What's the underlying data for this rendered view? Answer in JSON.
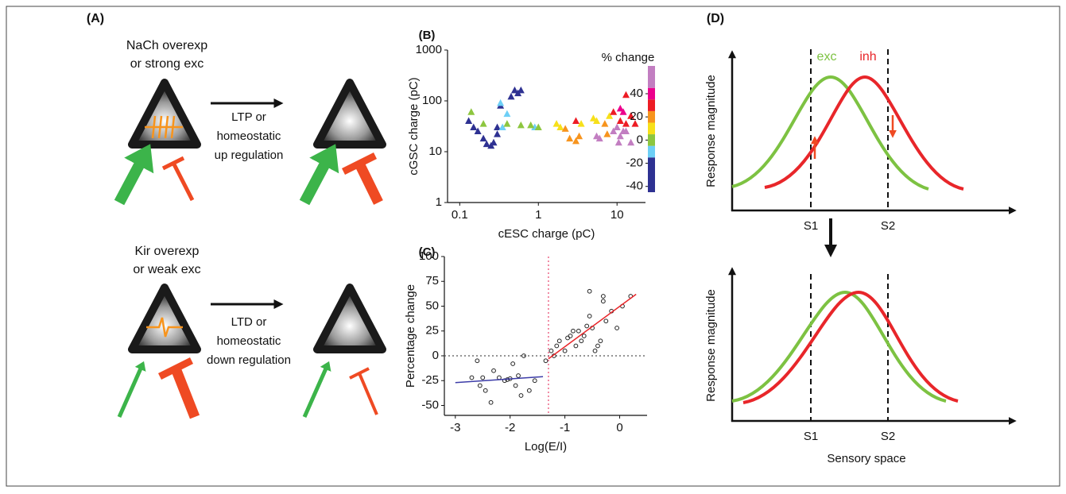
{
  "panel_a": {
    "label": "(A)",
    "top": {
      "condition": [
        "NaCh overexp",
        "or strong exc"
      ],
      "plasticity": [
        "LTP or",
        "homeostatic",
        "up regulation"
      ]
    },
    "bottom": {
      "condition": [
        "Kir overexp",
        "or weak exc"
      ],
      "plasticity": [
        "LTD or",
        "homeostatic",
        "down regulation"
      ]
    }
  },
  "panel_d": {
    "label": "(D)",
    "exc": "exc",
    "inh": "inh",
    "top": {
      "y_label": "Response magnitude",
      "s1": "S1",
      "s2": "S2"
    },
    "bottom": {
      "y_label": "Response magnitude",
      "s1": "S1",
      "s2": "S2",
      "x_label": "Sensory space"
    }
  },
  "chart_data": [
    {
      "type": "scatter",
      "label": "(B)",
      "marker": "triangle",
      "x_label": "cESC charge (pC)",
      "y_label": "cGSC charge (pC)",
      "xlog": true,
      "ylog": true,
      "xlim": [
        0.07,
        23
      ],
      "ylim": [
        1,
        1000
      ],
      "xticks": [
        0.1,
        1,
        10
      ],
      "yticks": [
        1,
        10,
        100,
        1000
      ],
      "x": [
        0.13,
        0.15,
        0.17,
        0.2,
        0.22,
        0.25,
        0.27,
        0.3,
        0.3,
        0.33,
        0.45,
        0.5,
        0.6,
        0.55,
        0.33,
        0.35,
        0.4,
        0.9,
        0.14,
        0.2,
        0.4,
        0.6,
        0.8,
        1.0,
        1.7,
        1.9,
        3.5,
        5,
        5.5,
        8,
        2.2,
        2.5,
        3,
        3.3,
        7,
        7.5,
        3,
        9,
        11,
        13,
        13,
        15,
        17,
        11,
        12,
        5.5,
        6,
        9,
        10,
        10.5,
        11,
        12,
        13,
        15
      ],
      "values": [
        40,
        30,
        25,
        18,
        14,
        13,
        15,
        22,
        30,
        80,
        120,
        160,
        160,
        140,
        90,
        30,
        55,
        30,
        60,
        35,
        35,
        33,
        33,
        30,
        35,
        30,
        35,
        45,
        40,
        50,
        28,
        18,
        16,
        20,
        35,
        22,
        40,
        60,
        40,
        35,
        130,
        50,
        35,
        70,
        60,
        20,
        18,
        25,
        30,
        15,
        20,
        25,
        25,
        15
      ],
      "z": [
        -35,
        -35,
        -35,
        -35,
        -35,
        -35,
        -35,
        -35,
        -35,
        -35,
        -35,
        -35,
        -35,
        -35,
        -10,
        -10,
        -10,
        -10,
        0,
        0,
        0,
        0,
        0,
        0,
        10,
        10,
        10,
        10,
        10,
        10,
        20,
        20,
        20,
        20,
        20,
        20,
        30,
        30,
        30,
        30,
        30,
        30,
        30,
        40,
        40,
        55,
        55,
        55,
        55,
        55,
        55,
        55,
        55,
        55
      ],
      "colorbar": {
        "label": "% change",
        "lim": [
          -45,
          64
        ],
        "ticks": [
          -40,
          -20,
          0,
          20,
          40
        ],
        "bounds": [
          -45,
          -15,
          -5,
          5,
          15,
          25,
          35,
          45,
          64
        ],
        "colors": [
          "#2e3192",
          "#6dcff6",
          "#8dc63f",
          "#f7e01a",
          "#f7941d",
          "#ed1c24",
          "#ec008c",
          "#c27ec1"
        ]
      }
    },
    {
      "type": "scatter",
      "label": "(C)",
      "marker": "circle",
      "color": "#222222",
      "x_label": "Log(E/I)",
      "y_label": "Percentage change",
      "xlim": [
        -3.2,
        0.5
      ],
      "ylim": [
        -60,
        100
      ],
      "xticks": [
        -3,
        -2,
        -1,
        0
      ],
      "yticks": [
        -50,
        -25,
        0,
        25,
        50,
        75,
        100
      ],
      "x": [
        -2.7,
        -2.6,
        -2.55,
        -2.5,
        -2.45,
        -2.35,
        -2.3,
        -2.2,
        -2.1,
        -2.05,
        -2,
        -1.95,
        -1.9,
        -1.85,
        -1.8,
        -1.75,
        -1.65,
        -1.55,
        -1.35,
        -1.25,
        -1.2,
        -1.15,
        -1.1,
        -1.0,
        -0.95,
        -0.9,
        -0.85,
        -0.8,
        -0.75,
        -0.7,
        -0.65,
        -0.6,
        -0.55,
        -0.55,
        -0.5,
        -0.45,
        -0.4,
        -0.35,
        -0.3,
        -0.3,
        -0.25,
        -0.15,
        -0.05,
        0.05,
        0.2
      ],
      "values": [
        -22,
        -5,
        -30,
        -22,
        -35,
        -47,
        -15,
        -22,
        -25,
        -24,
        -23,
        -8,
        -30,
        -20,
        -40,
        0,
        -35,
        -25,
        -5,
        5,
        0,
        10,
        15,
        5,
        18,
        20,
        25,
        10,
        25,
        15,
        20,
        30,
        65,
        40,
        28,
        5,
        10,
        15,
        55,
        60,
        35,
        45,
        28,
        50,
        60
      ],
      "hline": 0,
      "hline_color": "#555555",
      "vline": -1.3,
      "vline_color": "#e8416b",
      "fits": [
        {
          "color": "#3c3ca8",
          "x": [
            -3,
            -1.4
          ],
          "values": [
            -27,
            -21
          ]
        },
        {
          "color": "#e8262a",
          "x": [
            -1.3,
            0.3
          ],
          "values": [
            -3,
            62
          ]
        }
      ]
    }
  ]
}
